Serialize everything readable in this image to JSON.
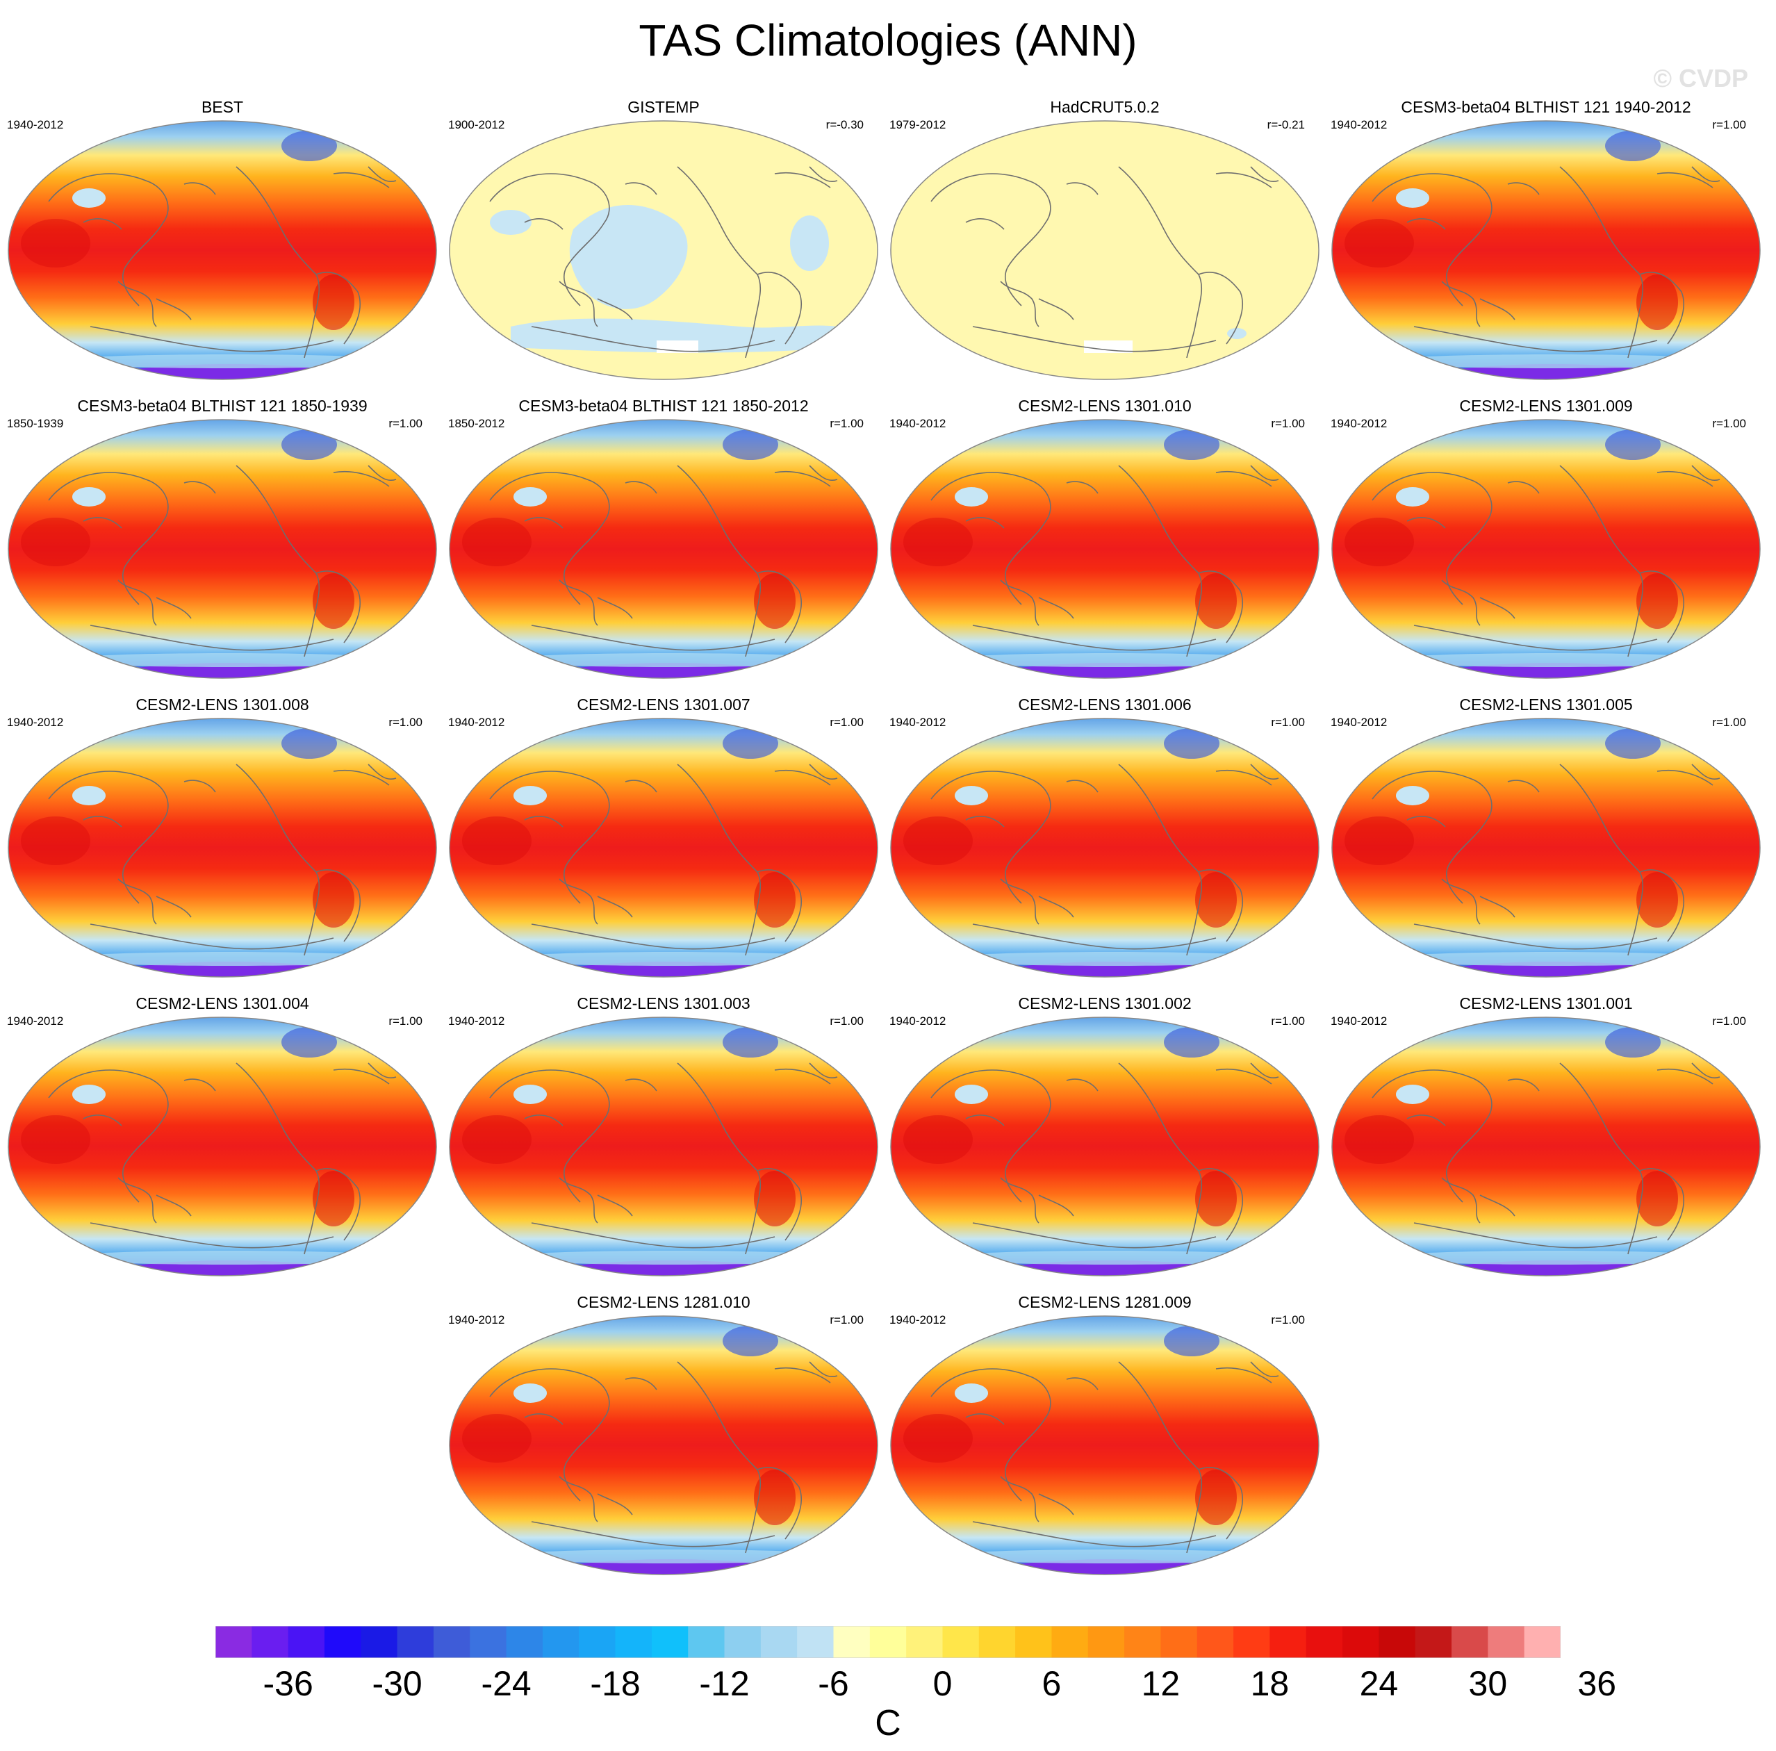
{
  "title": "TAS Climatologies (ANN)",
  "watermark": "© CVDP",
  "colors": {
    "ocean_outline": "#888888",
    "coast": "#6e6e6e",
    "warm_core": "#ee1c1c",
    "obs_land": "#fff8b0",
    "obs_ocean": "#c8e6f5"
  },
  "panels": [
    {
      "title": "BEST",
      "period": "1940-2012",
      "corr": "",
      "style": "model"
    },
    {
      "title": "GISTEMP",
      "period": "1900-2012",
      "corr": "r=-0.30",
      "style": "obs"
    },
    {
      "title": "HadCRUT5.0.2",
      "period": "1979-2012",
      "corr": "r=-0.21",
      "style": "obs"
    },
    {
      "title": "CESM3-beta04 BLTHIST 121 1940-2012",
      "period": "1940-2012",
      "corr": "r=1.00",
      "style": "model"
    },
    {
      "title": "CESM3-beta04 BLTHIST 121 1850-1939",
      "period": "1850-1939",
      "corr": "r=1.00",
      "style": "model"
    },
    {
      "title": "CESM3-beta04 BLTHIST 121 1850-2012",
      "period": "1850-2012",
      "corr": "r=1.00",
      "style": "model"
    },
    {
      "title": "CESM2-LENS 1301.010",
      "period": "1940-2012",
      "corr": "r=1.00",
      "style": "model"
    },
    {
      "title": "CESM2-LENS 1301.009",
      "period": "1940-2012",
      "corr": "r=1.00",
      "style": "model"
    },
    {
      "title": "CESM2-LENS 1301.008",
      "period": "1940-2012",
      "corr": "r=1.00",
      "style": "model"
    },
    {
      "title": "CESM2-LENS 1301.007",
      "period": "1940-2012",
      "corr": "r=1.00",
      "style": "model"
    },
    {
      "title": "CESM2-LENS 1301.006",
      "period": "1940-2012",
      "corr": "r=1.00",
      "style": "model"
    },
    {
      "title": "CESM2-LENS 1301.005",
      "period": "1940-2012",
      "corr": "r=1.00",
      "style": "model"
    },
    {
      "title": "CESM2-LENS 1301.004",
      "period": "1940-2012",
      "corr": "r=1.00",
      "style": "model"
    },
    {
      "title": "CESM2-LENS 1301.003",
      "period": "1940-2012",
      "corr": "r=1.00",
      "style": "model"
    },
    {
      "title": "CESM2-LENS 1301.002",
      "period": "1940-2012",
      "corr": "r=1.00",
      "style": "model"
    },
    {
      "title": "CESM2-LENS 1301.001",
      "period": "1940-2012",
      "corr": "r=1.00",
      "style": "model"
    },
    {
      "title": "CESM2-LENS 1281.010",
      "period": "1940-2012",
      "corr": "r=1.00",
      "style": "model"
    },
    {
      "title": "CESM2-LENS 1281.009",
      "period": "1940-2012",
      "corr": "r=1.00",
      "style": "model"
    }
  ],
  "colorbar": {
    "colors": [
      "#8a2be2",
      "#6a1ef0",
      "#4a14f5",
      "#1f0afa",
      "#1a1ae6",
      "#2e3ddb",
      "#3e5cd8",
      "#3b72e0",
      "#2d86e8",
      "#2397ef",
      "#1aa5f5",
      "#14b4fa",
      "#10c0fb",
      "#5ec7f0",
      "#8dcff0",
      "#a9d8f2",
      "#c0e2f4",
      "#ffffc0",
      "#ffff9a",
      "#fff27a",
      "#ffe64a",
      "#ffd52e",
      "#ffc21a",
      "#ffab12",
      "#ff9812",
      "#ff8417",
      "#ff6e17",
      "#ff571a",
      "#ff3c14",
      "#f51f10",
      "#e8100e",
      "#dc0a0a",
      "#c80808",
      "#c41818",
      "#d94a4a",
      "#ee7c7c",
      "#ffb0b0"
    ],
    "tick_labels": [
      "-36",
      "-30",
      "-24",
      "-18",
      "-12",
      "-6",
      "0",
      "6",
      "12",
      "18",
      "24",
      "30",
      "36"
    ],
    "units": "C"
  }
}
